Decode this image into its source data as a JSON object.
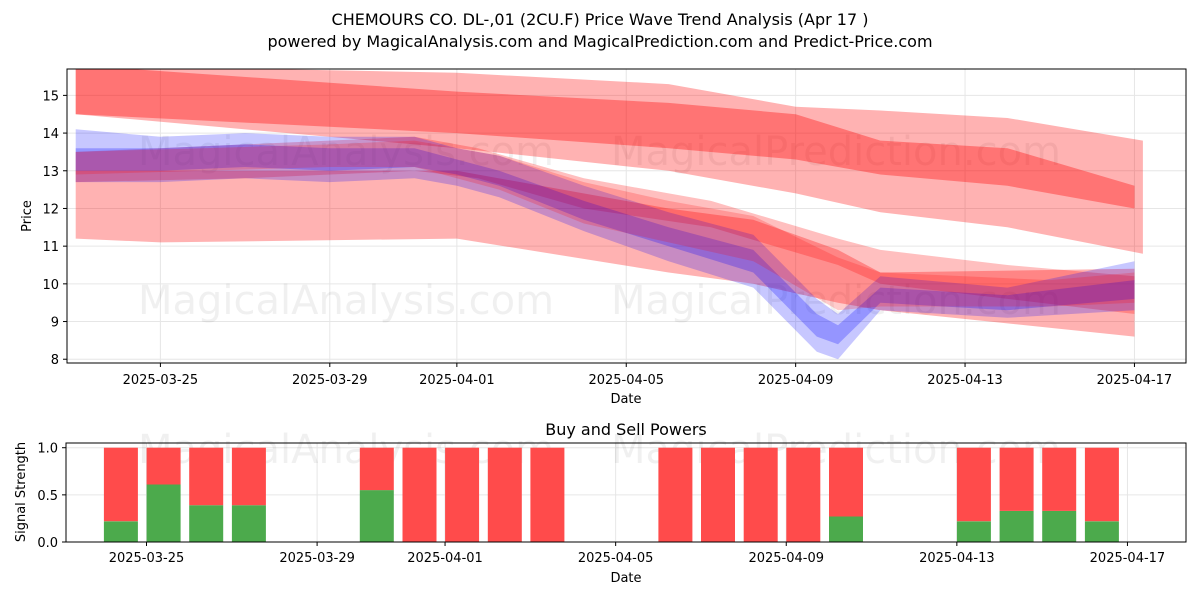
{
  "title_line1": "CHEMOURS CO.  DL-,01 (2CU.F) Price Wave Trend Analysis (Apr 17 )",
  "title_line2": "powered by MagicalAnalysis.com and MagicalPrediction.com and Predict-Price.com",
  "watermarks": [
    "MagicalAnalysis.com",
    "MagicalPrediction.com"
  ],
  "colors": {
    "red": "#ff0000",
    "blue": "#0000ff",
    "green": "#4caa4c",
    "sell": "#ff4b4b",
    "grid": "#e6e6e6"
  },
  "chart_data": [
    {
      "type": "area",
      "name": "price-wave-chart",
      "xlabel": "Date",
      "ylabel": "Price",
      "ylim": [
        7.9,
        15.7
      ],
      "grid": true,
      "x_tick_labels": [
        "2025-03-25",
        "2025-03-29",
        "2025-04-01",
        "2025-04-05",
        "2025-04-09",
        "2025-04-13",
        "2025-04-17"
      ],
      "y_ticks": [
        8,
        9,
        10,
        11,
        12,
        13,
        14,
        15
      ],
      "x_days": [
        0,
        1,
        2,
        3,
        4,
        5,
        6,
        7,
        8,
        9,
        10,
        11,
        12,
        13,
        14,
        15,
        16,
        17,
        18,
        19,
        20,
        21,
        22,
        23,
        24,
        25
      ],
      "x_tick_days": [
        2,
        6,
        9,
        13,
        17,
        21,
        25
      ],
      "series": [
        {
          "name": "red-band-upper-wide",
          "color": "red",
          "opacity": 0.3,
          "x": [
            0,
            9,
            14,
            17,
            19,
            22,
            25.2
          ],
          "lower": [
            14.5,
            13.6,
            13.0,
            12.4,
            11.9,
            11.5,
            10.8
          ],
          "upper": [
            15.8,
            15.6,
            15.3,
            14.7,
            14.6,
            14.4,
            13.8
          ]
        },
        {
          "name": "red-band-upper-core",
          "color": "red",
          "opacity": 0.35,
          "x": [
            0,
            9,
            14,
            17,
            19,
            22,
            25
          ],
          "lower": [
            14.5,
            14.0,
            13.6,
            13.3,
            12.9,
            12.6,
            12.0
          ],
          "upper": [
            15.8,
            15.1,
            14.8,
            14.5,
            13.8,
            13.6,
            12.6
          ]
        },
        {
          "name": "red-band-lower-wide",
          "color": "red",
          "opacity": 0.3,
          "x": [
            0,
            2,
            9,
            14,
            16,
            18,
            19,
            25
          ],
          "lower": [
            11.2,
            11.1,
            11.2,
            10.3,
            10.0,
            9.5,
            9.3,
            8.6
          ],
          "upper": [
            13.0,
            13.0,
            13.0,
            12.0,
            11.7,
            10.9,
            10.3,
            10.4
          ]
        },
        {
          "name": "red-band-mid",
          "color": "red",
          "opacity": 0.25,
          "x": [
            0,
            4,
            8,
            9.5,
            12,
            15,
            18,
            19,
            22,
            25
          ],
          "lower": [
            12.7,
            12.8,
            13.0,
            12.8,
            12.0,
            11.5,
            10.5,
            10.0,
            9.6,
            9.2
          ],
          "upper": [
            13.5,
            13.7,
            13.9,
            13.6,
            12.8,
            12.2,
            11.2,
            10.9,
            10.5,
            10.2
          ]
        },
        {
          "name": "blue-band-main",
          "color": "blue",
          "opacity": 0.22,
          "x": [
            0,
            2,
            4,
            6,
            8,
            9,
            10,
            12,
            14,
            16,
            17.5,
            18,
            19,
            22,
            25
          ],
          "lower": [
            12.7,
            12.7,
            12.8,
            12.7,
            12.8,
            12.6,
            12.3,
            11.4,
            10.6,
            9.9,
            8.2,
            8.0,
            9.3,
            9.1,
            9.3
          ],
          "upper": [
            14.1,
            13.9,
            14.0,
            13.9,
            13.9,
            13.6,
            13.4,
            12.6,
            11.9,
            11.3,
            9.6,
            9.2,
            10.2,
            9.9,
            10.6
          ]
        },
        {
          "name": "blue-band-core",
          "color": "blue",
          "opacity": 0.25,
          "x": [
            0,
            2,
            4,
            6,
            8,
            9,
            10,
            12,
            14,
            16,
            17.5,
            18,
            19,
            22,
            25
          ],
          "lower": [
            13.0,
            13.0,
            13.1,
            13.0,
            13.1,
            12.9,
            12.6,
            11.7,
            11.0,
            10.3,
            8.6,
            8.4,
            9.5,
            9.3,
            9.6
          ],
          "upper": [
            13.6,
            13.6,
            13.7,
            13.6,
            13.6,
            13.3,
            13.0,
            12.2,
            11.5,
            10.9,
            9.2,
            8.9,
            9.9,
            9.7,
            10.1
          ]
        },
        {
          "name": "purple-band",
          "color": "red",
          "opacity": 0.2,
          "x": [
            0,
            3,
            6,
            8,
            10,
            12,
            14,
            16,
            18,
            19,
            21,
            23,
            25
          ],
          "lower": [
            12.9,
            13.0,
            13.1,
            13.1,
            12.5,
            11.6,
            11.1,
            10.6,
            9.3,
            9.4,
            9.4,
            9.4,
            9.5
          ],
          "upper": [
            13.5,
            13.6,
            13.7,
            13.8,
            13.4,
            12.7,
            12.2,
            11.8,
            10.7,
            10.3,
            10.2,
            10.1,
            10.3
          ]
        }
      ]
    },
    {
      "type": "bar",
      "name": "buy-sell-powers",
      "title": "Buy and Sell Powers",
      "xlabel": "Date",
      "ylabel": "Signal Strength",
      "ylim": [
        0,
        1.05
      ],
      "y_ticks": [
        0.0,
        0.5,
        1.0
      ],
      "y_tick_labels": [
        "0.0",
        "0.5",
        "1.0"
      ],
      "x_tick_labels": [
        "2025-03-25",
        "2025-03-29",
        "2025-04-01",
        "2025-04-05",
        "2025-04-09",
        "2025-04-13",
        "2025-04-17"
      ],
      "x_tick_days": [
        0,
        4,
        7,
        11,
        15,
        19,
        23
      ],
      "bars": [
        {
          "day": -0.6,
          "buy": 0.22,
          "sell": 0.78
        },
        {
          "day": 0.4,
          "buy": 0.61,
          "sell": 0.39
        },
        {
          "day": 1.4,
          "buy": 0.39,
          "sell": 0.61
        },
        {
          "day": 2.4,
          "buy": 0.39,
          "sell": 0.61
        },
        {
          "day": 5.4,
          "buy": 0.55,
          "sell": 0.45
        },
        {
          "day": 6.4,
          "buy": 0.0,
          "sell": 1.0
        },
        {
          "day": 7.4,
          "buy": 0.0,
          "sell": 1.0
        },
        {
          "day": 8.4,
          "buy": 0.0,
          "sell": 1.0
        },
        {
          "day": 9.4,
          "buy": 0.0,
          "sell": 1.0
        },
        {
          "day": 12.4,
          "buy": 0.0,
          "sell": 1.0
        },
        {
          "day": 13.4,
          "buy": 0.0,
          "sell": 1.0
        },
        {
          "day": 14.4,
          "buy": 0.0,
          "sell": 1.0
        },
        {
          "day": 15.4,
          "buy": 0.0,
          "sell": 1.0
        },
        {
          "day": 16.4,
          "buy": 0.27,
          "sell": 0.73
        },
        {
          "day": 19.4,
          "buy": 0.22,
          "sell": 0.78
        },
        {
          "day": 20.4,
          "buy": 0.33,
          "sell": 0.67
        },
        {
          "day": 21.4,
          "buy": 0.33,
          "sell": 0.67
        },
        {
          "day": 22.4,
          "buy": 0.22,
          "sell": 0.78
        }
      ]
    }
  ]
}
